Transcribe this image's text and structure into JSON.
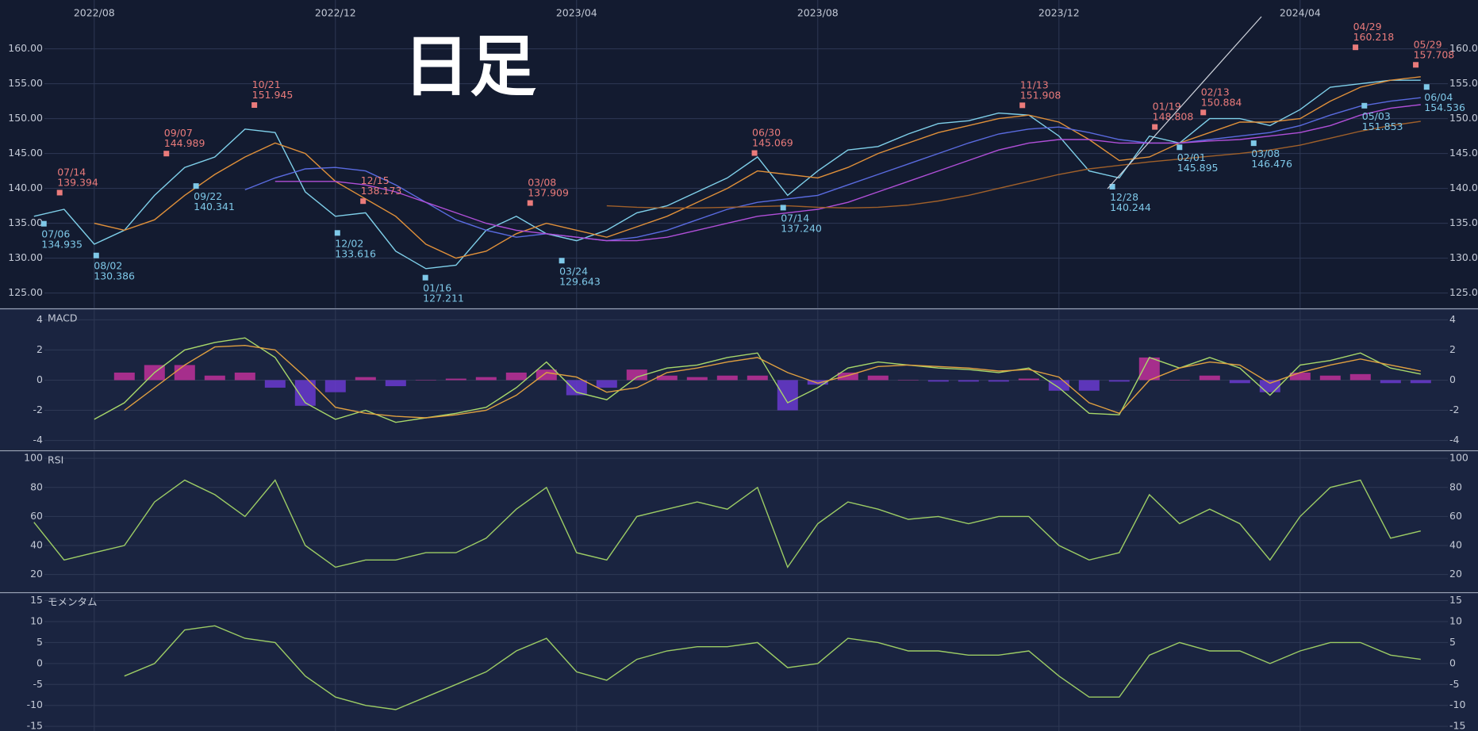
{
  "chart_data": [
    {
      "type": "line",
      "handwritten_note": "日足",
      "categories": [
        null,
        null,
        "2022/08",
        null,
        null,
        null,
        null,
        null,
        null,
        null,
        "2022/12",
        null,
        null,
        null,
        null,
        null,
        null,
        null,
        "2023/04",
        null,
        null,
        null,
        null,
        null,
        null,
        null,
        "2023/08",
        null,
        null,
        null,
        null,
        null,
        null,
        null,
        "2023/12",
        null,
        null,
        null,
        null,
        null,
        null,
        null,
        "2024/04",
        null,
        null,
        null,
        null
      ],
      "ylim": [
        122.8,
        167
      ],
      "yticks": [
        {
          "value": 125,
          "label": "125.00"
        },
        {
          "value": 130,
          "label": "130.00"
        },
        {
          "value": 135,
          "label": "135.00"
        },
        {
          "value": 140,
          "label": "140.00"
        },
        {
          "value": 145,
          "label": "145.00"
        },
        {
          "value": 150,
          "label": "150.00"
        },
        {
          "value": 155,
          "label": "155.00"
        },
        {
          "value": 160,
          "label": "160.00"
        }
      ],
      "grid": true,
      "series": [
        {
          "color": "#7fd0ea",
          "values": [
            136,
            137,
            132,
            134,
            139,
            143,
            144.5,
            148.5,
            148,
            139.5,
            136,
            136.5,
            131,
            128.5,
            129,
            134,
            136,
            133.5,
            132.5,
            134,
            136.5,
            137.5,
            139.5,
            141.5,
            144.5,
            139,
            142.5,
            145.5,
            146,
            147.8,
            149.3,
            149.7,
            150.8,
            150.5,
            147.5,
            142.5,
            141.5,
            147.5,
            146.5,
            150,
            150,
            149,
            151.3,
            154.5,
            155,
            155.5,
            155.5
          ]
        },
        {
          "color": "#e0903a",
          "values": [
            null,
            null,
            135,
            134,
            135.5,
            139,
            142,
            144.5,
            146.5,
            145,
            141,
            138.5,
            136,
            132,
            130,
            131,
            133.5,
            135,
            134,
            133,
            134.5,
            136,
            138,
            140,
            142.5,
            142,
            141.5,
            143,
            145,
            146.5,
            148,
            149,
            150,
            150.5,
            149.5,
            147,
            144,
            144.5,
            146.5,
            148,
            149.5,
            149.5,
            150,
            152.5,
            154.5,
            155.5,
            156
          ]
        },
        {
          "color": "#5a6be0",
          "values": [
            null,
            null,
            null,
            null,
            null,
            null,
            null,
            139.8,
            141.5,
            142.8,
            143,
            142.5,
            140.5,
            138,
            135.5,
            134,
            133,
            133.5,
            133,
            132.5,
            133,
            134,
            135.5,
            137,
            138,
            138.5,
            139,
            140.5,
            142,
            143.5,
            145,
            146.5,
            147.8,
            148.5,
            148.8,
            148,
            147,
            146.5,
            146.5,
            147,
            147.5,
            148,
            149,
            150.5,
            151.8,
            152.5,
            153
          ]
        },
        {
          "color": "#b04fd8",
          "values": [
            null,
            null,
            null,
            null,
            null,
            null,
            null,
            null,
            141,
            141,
            141,
            140.5,
            139.5,
            138,
            136.5,
            135,
            134,
            133.5,
            133,
            132.5,
            132.5,
            133,
            134,
            135,
            136,
            136.5,
            137,
            138,
            139.5,
            141,
            142.5,
            144,
            145.5,
            146.5,
            147,
            147,
            146.5,
            146.5,
            146.5,
            146.8,
            147,
            147.5,
            148,
            149,
            150.5,
            151.5,
            152
          ]
        },
        {
          "color": "#a0602a",
          "values": [
            null,
            null,
            null,
            null,
            null,
            null,
            null,
            null,
            null,
            null,
            null,
            null,
            null,
            null,
            null,
            null,
            null,
            null,
            null,
            137.5,
            137.3,
            137.2,
            137.2,
            137.3,
            137.4,
            137.5,
            137.3,
            137.2,
            137.3,
            137.6,
            138.2,
            139,
            140,
            141,
            142,
            142.8,
            143.3,
            143.8,
            144.2,
            144.6,
            145,
            145.5,
            146.2,
            147.2,
            148.2,
            149,
            149.6
          ]
        }
      ],
      "highs_color": "#ea7b7b",
      "highs": [
        {
          "date": "07/14",
          "value": 139.394
        },
        {
          "date": "09/07",
          "value": 144.989
        },
        {
          "date": "10/21",
          "value": 151.945
        },
        {
          "date": "12/15",
          "value": 138.173
        },
        {
          "date": "03/08",
          "value": 137.909
        },
        {
          "date": "06/30",
          "value": 145.069
        },
        {
          "date": "11/13",
          "value": 151.908
        },
        {
          "date": "01/19",
          "value": 148.808
        },
        {
          "date": "02/13",
          "value": 150.884
        },
        {
          "date": "04/29",
          "value": 160.218
        },
        {
          "date": "05/29",
          "value": 157.708
        }
      ],
      "lows_color": "#7ec8e8",
      "lows": [
        {
          "date": "07/06",
          "value": 134.935
        },
        {
          "date": "08/02",
          "value": 130.386
        },
        {
          "date": "09/22",
          "value": 140.341
        },
        {
          "date": "12/02",
          "value": 133.616
        },
        {
          "date": "01/16",
          "value": 127.211
        },
        {
          "date": "03/24",
          "value": 129.643
        },
        {
          "date": "07/14",
          "value": 137.24,
          "value_label": "137.240"
        },
        {
          "date": "12/28",
          "value": 140.244
        },
        {
          "date": "02/01",
          "value": 145.895
        },
        {
          "date": "03/08",
          "value": 146.476
        },
        {
          "date": "05/03",
          "value": 151.853
        },
        {
          "date": "06/04",
          "value": 154.536
        }
      ]
    },
    {
      "type": "combo",
      "title": "MACD",
      "ylim": [
        -4.6,
        4.7
      ],
      "yticks": [
        4,
        2,
        0,
        -2,
        -4
      ],
      "grid": true,
      "series": [
        {
          "type": "bar",
          "color": "#c0309a",
          "negative_color": "#6a3ad0",
          "values": [
            null,
            null,
            null,
            0.5,
            1.0,
            1.0,
            0.3,
            0.5,
            -0.5,
            -1.7,
            -0.8,
            0.2,
            -0.4,
            0,
            0.1,
            0.2,
            0.5,
            0.7,
            -1.0,
            -0.5,
            0.7,
            0.3,
            0.2,
            0.3,
            0.3,
            -2.0,
            -0.3,
            0.5,
            0.3,
            0,
            -0.1,
            -0.1,
            -0.1,
            0.1,
            -0.7,
            -0.7,
            -0.1,
            1.5,
            0,
            0.3,
            -0.2,
            -0.8,
            0.5,
            0.3,
            0.4,
            -0.2,
            -0.2
          ]
        },
        {
          "type": "line",
          "color": "#a8d86a",
          "values": [
            null,
            null,
            -2.6,
            -1.5,
            0.5,
            2,
            2.5,
            2.8,
            1.5,
            -1.5,
            -2.6,
            -2,
            -2.8,
            -2.5,
            -2.2,
            -1.8,
            -0.5,
            1.2,
            -0.8,
            -1.3,
            0.2,
            0.8,
            1.0,
            1.5,
            1.8,
            -1.5,
            -0.5,
            0.8,
            1.2,
            1.0,
            0.8,
            0.7,
            0.5,
            0.8,
            -0.5,
            -2.2,
            -2.3,
            1.5,
            0.8,
            1.5,
            0.8,
            -1.0,
            1.0,
            1.3,
            1.8,
            0.8,
            0.4
          ]
        },
        {
          "type": "line",
          "color": "#e0a040",
          "values": [
            null,
            null,
            null,
            -2,
            -0.5,
            1.0,
            2.2,
            2.3,
            2.0,
            0.2,
            -1.8,
            -2.2,
            -2.4,
            -2.5,
            -2.3,
            -2.0,
            -1.0,
            0.5,
            0.2,
            -0.8,
            -0.5,
            0.5,
            0.8,
            1.2,
            1.5,
            0.5,
            -0.2,
            0.3,
            0.9,
            1.0,
            0.9,
            0.8,
            0.6,
            0.7,
            0.2,
            -1.5,
            -2.2,
            0,
            0.8,
            1.2,
            1.0,
            -0.2,
            0.5,
            1.0,
            1.4,
            1.0,
            0.6
          ]
        }
      ]
    },
    {
      "type": "line",
      "title": "RSI",
      "ylim": [
        8.3,
        105
      ],
      "yticks": [
        100,
        80,
        60,
        40,
        20
      ],
      "grid": true,
      "series": [
        {
          "color": "#9ccc65",
          "values": [
            56,
            30,
            35,
            40,
            70,
            85,
            75,
            60,
            85,
            40,
            25,
            30,
            30,
            35,
            35,
            45,
            65,
            80,
            35,
            30,
            60,
            65,
            70,
            65,
            80,
            25,
            55,
            70,
            65,
            58,
            60,
            55,
            60,
            60,
            40,
            30,
            35,
            75,
            55,
            65,
            55,
            30,
            60,
            80,
            85,
            45,
            50
          ]
        }
      ]
    },
    {
      "type": "line",
      "title": "モメンタム",
      "ylim": [
        -16.1,
        16.8
      ],
      "yticks": [
        15,
        10,
        5,
        0,
        -5,
        -10,
        -15
      ],
      "grid": true,
      "series": [
        {
          "color": "#9ccc65",
          "values": [
            null,
            null,
            null,
            -3,
            0,
            8,
            9,
            6,
            5,
            -3,
            -8,
            -10,
            -11,
            -8,
            -5,
            -2,
            3,
            6,
            -2,
            -4,
            1,
            3,
            4,
            4,
            5,
            -1,
            0,
            6,
            5,
            3,
            3,
            2,
            2,
            3,
            -3,
            -8,
            -8,
            2,
            5,
            3,
            3,
            0,
            3,
            5,
            5,
            2,
            1
          ]
        }
      ]
    }
  ]
}
